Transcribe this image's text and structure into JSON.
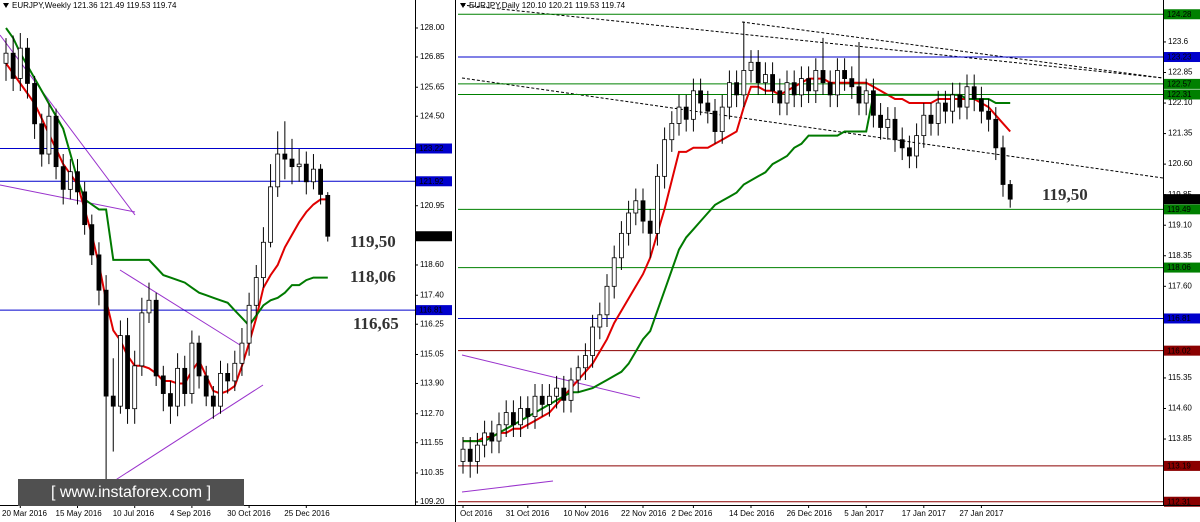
{
  "chart_data": [
    {
      "type": "candlestick",
      "title": "EURJPY,Weekly  121.36 121.49 119.53 119.74",
      "categories": [
        null,
        null,
        "20 Mar 2016",
        null,
        null,
        null,
        null,
        null,
        null,
        null,
        "15 May 2016",
        null,
        null,
        null,
        null,
        null,
        null,
        null,
        "10 Jul 2016",
        null,
        null,
        null,
        null,
        null,
        null,
        null,
        "4 Sep 2016",
        null,
        null,
        null,
        null,
        null,
        null,
        null,
        "30 Oct 2016",
        null,
        null,
        null,
        null,
        null,
        null,
        null,
        "25 Dec 2016",
        null,
        null,
        null
      ],
      "open": [
        126.6,
        127.0,
        126.0,
        127.2,
        125.8,
        124.2,
        123.0,
        124.5,
        122.5,
        121.6,
        122.3,
        121.5,
        120.2,
        119.0,
        117.6,
        113.4,
        113.0,
        115.8,
        112.9,
        114.6,
        116.7,
        117.2,
        114.2,
        113.5,
        113.0,
        114.5,
        113.5,
        115.5,
        114.2,
        113.4,
        113.0,
        114.3,
        114.0,
        114.7,
        115.5,
        117.0,
        118.1,
        119.5,
        121.7,
        123.0,
        122.8,
        122.5,
        122.6,
        121.9,
        122.4,
        121.36
      ],
      "high": [
        127.6,
        127.7,
        127.8,
        127.6,
        126.1,
        124.6,
        125.0,
        124.8,
        123.0,
        122.8,
        122.8,
        121.9,
        120.6,
        119.5,
        118.2,
        114.9,
        116.4,
        116.5,
        115.2,
        117.3,
        117.9,
        117.5,
        114.6,
        114.0,
        115.1,
        115.0,
        116.0,
        115.8,
        114.6,
        113.8,
        114.8,
        114.7,
        115.2,
        116.1,
        117.5,
        118.6,
        120.1,
        122.6,
        123.9,
        124.3,
        123.6,
        123.2,
        123.1,
        123.0,
        122.6,
        121.49
      ],
      "low": [
        125.9,
        125.5,
        125.5,
        125.2,
        123.6,
        122.5,
        122.6,
        122.0,
        121.0,
        121.2,
        121.0,
        119.8,
        118.6,
        117.0,
        109.6,
        111.2,
        112.7,
        112.3,
        112.3,
        114.2,
        116.3,
        113.8,
        112.8,
        112.3,
        112.6,
        113.0,
        113.1,
        113.7,
        113.0,
        112.5,
        112.7,
        113.5,
        113.6,
        114.2,
        115.0,
        116.6,
        117.7,
        119.3,
        121.3,
        122.0,
        121.8,
        121.9,
        121.4,
        121.6,
        121.0,
        119.53
      ],
      "close": [
        127.0,
        126.0,
        127.2,
        125.8,
        124.2,
        123.0,
        124.5,
        122.5,
        121.6,
        122.3,
        121.5,
        120.2,
        119.0,
        117.6,
        113.4,
        113.0,
        115.8,
        112.9,
        114.6,
        116.7,
        117.2,
        114.2,
        113.5,
        113.0,
        114.5,
        113.5,
        115.5,
        114.2,
        113.4,
        113.0,
        114.3,
        114.0,
        114.7,
        115.5,
        117.0,
        118.1,
        119.5,
        121.7,
        123.0,
        122.8,
        122.5,
        122.6,
        121.9,
        122.4,
        121.4,
        119.74
      ],
      "lines": [
        {
          "color": "#e00000",
          "values": [
            126.6,
            126.2,
            125.8,
            125.4,
            125.0,
            124.4,
            123.8,
            123.2,
            122.6,
            122.2,
            121.8,
            120.8,
            119.8,
            118.6,
            117.2,
            116.0,
            115.6,
            115.0,
            114.6,
            114.6,
            114.5,
            114.3,
            114.0,
            114.0,
            113.9,
            113.9,
            114.4,
            114.8,
            114.2,
            113.6,
            113.5,
            113.6,
            113.8,
            114.6,
            115.5,
            116.5,
            117.7,
            118.2,
            118.6,
            119.3,
            119.8,
            120.3,
            120.7,
            121.0,
            121.2,
            121.2
          ]
        },
        {
          "color": "#007a00",
          "values": [
            128.0,
            127.6,
            127.0,
            126.5,
            126.0,
            125.5,
            125.0,
            124.5,
            124.0,
            123.0,
            122.0,
            121.2,
            121.0,
            120.8,
            120.8,
            118.8,
            118.8,
            118.8,
            118.8,
            118.8,
            118.8,
            118.5,
            118.2,
            118.1,
            118.0,
            117.9,
            117.7,
            117.5,
            117.4,
            117.3,
            117.2,
            117.1,
            116.8,
            116.5,
            116.2,
            116.6,
            117.0,
            117.2,
            117.3,
            117.5,
            117.8,
            117.8,
            118.0,
            118.1,
            118.1,
            118.1
          ]
        }
      ],
      "up_color": "#ffffff",
      "down_color": "#000000",
      "levels": [
        {
          "value": 123.22,
          "color": "#0000cc"
        },
        {
          "value": 121.92,
          "color": "#0000cc"
        },
        {
          "value": 116.81,
          "color": "#0000cc"
        }
      ],
      "last": 119.74,
      "ylim": [
        109.08,
        129.11
      ],
      "yticks": [
        {
          "value": 128,
          "label": "128.00"
        },
        126.85,
        125.65,
        {
          "value": 124.5,
          "label": "124.50"
        },
        120.95,
        {
          "value": 118.6,
          "label": "118.60"
        },
        {
          "value": 117.4,
          "label": "117.40"
        },
        116.25,
        115.05,
        {
          "value": 113.9,
          "label": "113.90"
        },
        {
          "value": 112.7,
          "label": "112.70"
        },
        111.55,
        110.35,
        {
          "value": 109.2,
          "label": "109.20"
        }
      ],
      "annotations": [
        "119,50",
        "118,06",
        "116,65"
      ]
    },
    {
      "type": "candlestick",
      "title": "EURJPY,Daily  120.10 120.21 119.53 119.74",
      "categories": [
        "Oct 2016",
        null,
        null,
        null,
        null,
        null,
        null,
        null,
        null,
        "31 Oct 2016",
        null,
        null,
        null,
        null,
        null,
        null,
        null,
        "10 Nov 2016",
        null,
        null,
        null,
        null,
        null,
        null,
        null,
        "22 Nov 2016",
        null,
        null,
        null,
        null,
        null,
        null,
        "2 Dec 2016",
        null,
        null,
        null,
        null,
        null,
        null,
        null,
        "14 Dec 2016",
        null,
        null,
        null,
        null,
        null,
        null,
        null,
        "26 Dec 2016",
        null,
        null,
        null,
        null,
        null,
        null,
        null,
        "5 Jan 2017",
        null,
        null,
        null,
        null,
        null,
        null,
        null,
        "17 Jan 2017",
        null,
        null,
        null,
        null,
        null,
        null,
        null,
        "27 Jan 2017",
        null,
        null,
        null,
        null
      ],
      "open": [
        113.3,
        113.6,
        113.3,
        113.7,
        114.0,
        113.8,
        114.2,
        114.5,
        114.2,
        114.6,
        114.4,
        114.9,
        114.7,
        114.9,
        115.1,
        114.8,
        115.3,
        115.6,
        115.9,
        116.6,
        116.9,
        117.6,
        118.3,
        118.9,
        119.4,
        119.7,
        119.2,
        118.9,
        120.3,
        121.2,
        121.6,
        122.0,
        121.7,
        122.4,
        122.1,
        121.9,
        121.4,
        122.0,
        122.6,
        122.3,
        122.9,
        123.1,
        122.6,
        122.8,
        122.4,
        122.1,
        122.6,
        122.3,
        122.7,
        122.4,
        122.9,
        122.6,
        122.3,
        122.9,
        122.7,
        122.5,
        122.1,
        122.4,
        121.8,
        121.5,
        121.7,
        121.2,
        121.0,
        120.8,
        121.3,
        121.8,
        121.6,
        122.1,
        121.9,
        122.3,
        122.0,
        122.5,
        122.2,
        121.9,
        121.7,
        121.0,
        120.1
      ],
      "high": [
        113.9,
        113.9,
        114.0,
        114.3,
        114.3,
        114.5,
        114.8,
        114.8,
        114.9,
        114.9,
        115.2,
        115.2,
        115.2,
        115.4,
        115.4,
        115.6,
        115.9,
        116.2,
        116.9,
        117.2,
        117.9,
        118.6,
        119.2,
        119.7,
        120.0,
        120.0,
        119.5,
        120.6,
        121.5,
        121.9,
        122.3,
        122.3,
        122.7,
        122.7,
        122.4,
        122.2,
        122.3,
        122.9,
        122.9,
        124.1,
        123.4,
        123.4,
        123.1,
        123.1,
        122.7,
        122.9,
        122.9,
        123.0,
        123.0,
        123.2,
        123.7,
        122.9,
        123.2,
        123.2,
        123.0,
        123.6,
        122.7,
        122.7,
        122.1,
        122.0,
        122.0,
        121.5,
        121.3,
        121.6,
        122.1,
        122.1,
        122.4,
        122.4,
        122.6,
        122.6,
        122.8,
        122.8,
        122.5,
        122.2,
        122.0,
        121.3,
        120.21
      ],
      "low": [
        113.0,
        112.9,
        113.0,
        113.4,
        113.5,
        113.5,
        113.9,
        113.9,
        113.9,
        114.1,
        114.1,
        114.4,
        114.4,
        114.6,
        114.5,
        114.5,
        115.0,
        115.3,
        115.6,
        116.3,
        116.6,
        117.3,
        118.0,
        118.6,
        119.1,
        118.9,
        118.3,
        118.6,
        120.0,
        120.9,
        121.3,
        121.4,
        121.4,
        121.8,
        121.6,
        121.1,
        121.1,
        121.7,
        122.0,
        122.0,
        122.6,
        122.3,
        122.3,
        122.1,
        121.8,
        121.8,
        122.0,
        122.0,
        122.1,
        122.1,
        122.3,
        122.0,
        122.0,
        122.4,
        122.2,
        121.8,
        121.8,
        121.5,
        121.2,
        121.2,
        120.9,
        120.7,
        120.5,
        120.5,
        121.0,
        121.3,
        121.3,
        121.6,
        121.6,
        121.7,
        121.7,
        121.9,
        121.6,
        121.4,
        120.7,
        119.8,
        119.53
      ],
      "close": [
        113.6,
        113.3,
        113.7,
        114.0,
        113.8,
        114.2,
        114.5,
        114.2,
        114.6,
        114.4,
        114.9,
        114.7,
        114.9,
        115.1,
        114.8,
        115.3,
        115.6,
        115.9,
        116.6,
        116.9,
        117.6,
        118.3,
        118.9,
        119.4,
        119.7,
        119.2,
        118.9,
        120.3,
        121.2,
        121.6,
        122.0,
        121.7,
        122.4,
        122.1,
        121.9,
        121.4,
        122.0,
        122.6,
        122.3,
        122.9,
        123.1,
        122.6,
        122.8,
        122.4,
        122.1,
        122.6,
        122.3,
        122.7,
        122.4,
        122.9,
        122.6,
        122.3,
        122.9,
        122.7,
        122.5,
        122.1,
        122.4,
        121.8,
        121.5,
        121.7,
        121.2,
        121.0,
        120.8,
        121.3,
        121.8,
        121.6,
        122.1,
        121.9,
        122.3,
        122.0,
        122.5,
        122.2,
        121.9,
        121.7,
        121.0,
        120.1,
        119.74
      ],
      "lines": [
        {
          "color": "#e00000",
          "values": [
            113.8,
            113.8,
            113.8,
            113.9,
            113.9,
            114.0,
            114.0,
            114.1,
            114.1,
            114.2,
            114.3,
            114.4,
            114.5,
            114.7,
            114.9,
            115.1,
            115.3,
            115.5,
            115.7,
            116.0,
            116.3,
            116.7,
            117.0,
            117.3,
            117.6,
            117.9,
            118.3,
            118.9,
            119.5,
            120.2,
            120.9,
            120.9,
            121.0,
            121.0,
            121.0,
            121.1,
            121.2,
            121.3,
            121.4,
            122.0,
            122.5,
            122.5,
            122.4,
            122.4,
            122.3,
            122.4,
            122.5,
            122.6,
            122.7,
            122.7,
            122.7,
            122.6,
            122.6,
            122.6,
            122.6,
            122.6,
            122.6,
            122.5,
            122.4,
            122.3,
            122.2,
            122.2,
            122.1,
            122.1,
            122.1,
            122.1,
            122.2,
            122.2,
            122.2,
            122.2,
            122.2,
            122.2,
            122.1,
            122.0,
            121.8,
            121.6,
            121.4
          ]
        },
        {
          "color": "#007a00",
          "values": [
            113.8,
            113.8,
            113.8,
            113.8,
            113.9,
            114.0,
            114.1,
            114.2,
            114.3,
            114.4,
            114.5,
            114.6,
            114.7,
            114.8,
            114.9,
            115.0,
            115.0,
            115.05,
            115.1,
            115.2,
            115.3,
            115.4,
            115.5,
            115.7,
            116.0,
            116.3,
            116.5,
            117.0,
            117.5,
            118.0,
            118.5,
            118.8,
            119.0,
            119.2,
            119.4,
            119.6,
            119.7,
            119.8,
            119.9,
            120.1,
            120.2,
            120.3,
            120.4,
            120.6,
            120.7,
            120.8,
            121.0,
            121.1,
            121.3,
            121.3,
            121.3,
            121.3,
            121.3,
            121.4,
            121.4,
            121.4,
            121.4,
            122.3,
            122.3,
            122.3,
            122.3,
            122.3,
            122.3,
            122.3,
            122.3,
            122.3,
            122.3,
            122.3,
            122.3,
            122.3,
            122.2,
            122.2,
            122.2,
            122.2,
            122.1,
            122.1,
            122.1
          ]
        }
      ],
      "up_color": "#ffffff",
      "down_color": "#000000",
      "levels": [
        {
          "value": 124.28,
          "color": "#008000"
        },
        {
          "value": 123.23,
          "color": "#0000cc"
        },
        {
          "value": 122.57,
          "color": "#008000"
        },
        {
          "value": 122.31,
          "color": "#008000"
        },
        {
          "value": 119.49,
          "color": "#008000"
        },
        {
          "value": 118.06,
          "color": "#008000"
        },
        {
          "value": 116.81,
          "color": "#0000cc"
        },
        {
          "value": 116.02,
          "color": "#8b0000"
        },
        {
          "value": 113.19,
          "color": "#8b0000"
        },
        {
          "value": 112.31,
          "color": "#8b0000"
        }
      ],
      "last": 119.74,
      "ylim": [
        112.23,
        124.63
      ],
      "yticks": [
        123.6,
        122.85,
        {
          "value": 122.1,
          "label": "122.10"
        },
        121.35,
        {
          "value": 120.6,
          "label": "120.60"
        },
        119.85,
        {
          "value": 119.1,
          "label": "119.10"
        },
        118.35,
        {
          "value": 117.6,
          "label": "117.60"
        },
        115.35,
        {
          "value": 114.6,
          "label": "114.60"
        },
        113.85
      ],
      "annotations": [
        "119,50"
      ]
    }
  ],
  "watermark": "[ www.instaforex.com ]"
}
